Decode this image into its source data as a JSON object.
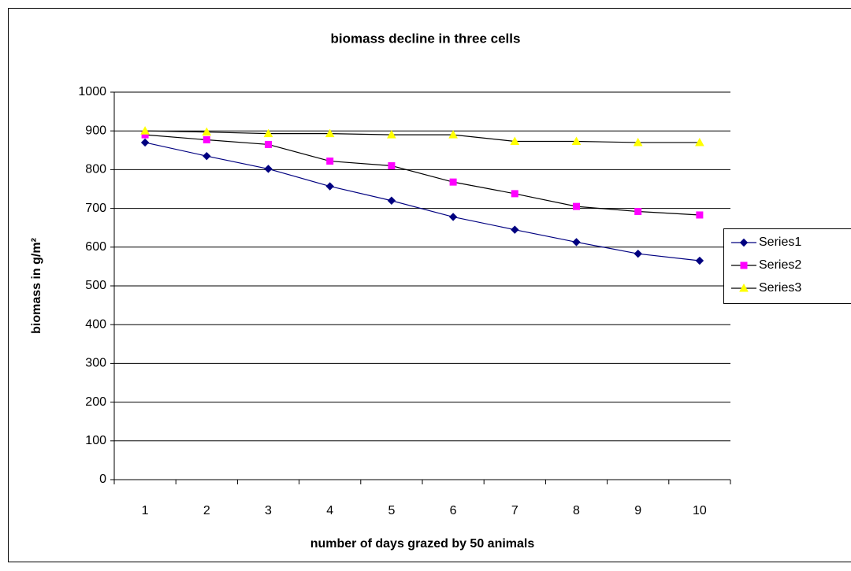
{
  "chart_data": {
    "type": "line",
    "title": "biomass decline in three cells",
    "xlabel": "number of days grazed by 50 animals",
    "ylabel": "biomass in g/m²",
    "categories": [
      "1",
      "2",
      "3",
      "4",
      "5",
      "6",
      "7",
      "8",
      "9",
      "10"
    ],
    "series": [
      {
        "name": "Series1",
        "color": "#000080",
        "line_color": "#000080",
        "marker": "diamond",
        "values": [
          870,
          835,
          802,
          757,
          720,
          678,
          645,
          613,
          583,
          565
        ]
      },
      {
        "name": "Series2",
        "color": "#ff00ff",
        "line_color": "#000000",
        "marker": "square",
        "values": [
          890,
          877,
          865,
          822,
          810,
          768,
          738,
          705,
          692,
          683
        ]
      },
      {
        "name": "Series3",
        "color": "#ffff00",
        "line_color": "#000000",
        "marker": "triangle",
        "values": [
          900,
          897,
          893,
          893,
          890,
          890,
          873,
          873,
          870,
          870
        ]
      }
    ],
    "ylim": [
      0,
      1000
    ],
    "yticks": [
      0,
      100,
      200,
      300,
      400,
      500,
      600,
      700,
      800,
      900,
      1000
    ],
    "grid": true,
    "legend": "right"
  }
}
